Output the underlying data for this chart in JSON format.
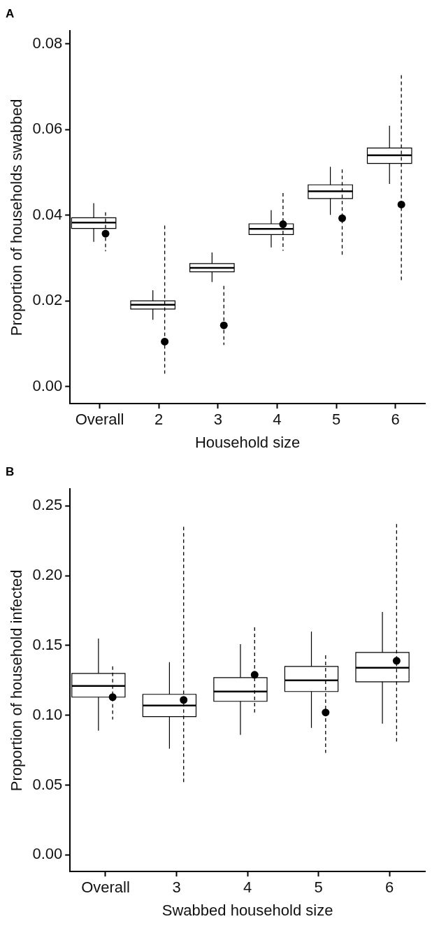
{
  "chart_data": [
    {
      "type": "box",
      "title": "A",
      "xlabel": "Household size",
      "ylabel": "Proportion of households swabbed",
      "categories": [
        "Overall",
        "2",
        "3",
        "4",
        "5",
        "6"
      ],
      "ylim": [
        -0.004,
        0.083
      ],
      "yticks": [
        {
          "value": 0,
          "label": "0.00"
        },
        0.02,
        0.04,
        0.06,
        0.08
      ],
      "series": [
        {
          "color": "#000000",
          "boxes": [
            {
              "low": 0.0338,
              "q1": 0.0369,
              "median": 0.0383,
              "q3": 0.0394,
              "high": 0.0428
            },
            {
              "low": 0.0156,
              "q1": 0.0181,
              "median": 0.0191,
              "q3": 0.02,
              "high": 0.0225
            },
            {
              "low": 0.0244,
              "q1": 0.0268,
              "median": 0.0277,
              "q3": 0.0287,
              "high": 0.0313
            },
            {
              "low": 0.0325,
              "q1": 0.0355,
              "median": 0.0368,
              "q3": 0.038,
              "high": 0.0412
            },
            {
              "low": 0.0401,
              "q1": 0.0439,
              "median": 0.0456,
              "q3": 0.0471,
              "high": 0.0513
            },
            {
              "low": 0.0473,
              "q1": 0.0521,
              "median": 0.054,
              "q3": 0.0557,
              "high": 0.0609
            }
          ]
        },
        {
          "type": "scatter",
          "color": "#000000",
          "marker": "circle",
          "line_style": "dashed",
          "x": [
            "Overall",
            "2",
            "3",
            "4",
            "5",
            "6"
          ],
          "values": [
            0.0357,
            0.0105,
            0.0143,
            0.0379,
            0.0393,
            0.0425
          ],
          "errors": [
            [
              0.0316,
              0.0407
            ],
            [
              0.003,
              0.0376
            ],
            [
              0.0097,
              0.0235
            ],
            [
              0.0317,
              0.0452
            ],
            [
              0.0304,
              0.0507
            ],
            [
              0.0248,
              0.0727
            ]
          ]
        }
      ]
    },
    {
      "type": "box",
      "title": "B",
      "xlabel": "Swabbed household size",
      "ylabel": "Proportion of household infected",
      "categories": [
        "Overall",
        "3",
        "4",
        "5",
        "6"
      ],
      "ylim": [
        -0.012,
        0.262
      ],
      "yticks": [
        {
          "value": 0,
          "label": "0.00"
        },
        0.05,
        {
          "value": 0.1,
          "label": "0.10"
        },
        0.15,
        {
          "value": 0.2,
          "label": "0.20"
        },
        0.25
      ],
      "series": [
        {
          "color": "#000000",
          "boxes": [
            {
              "low": 0.089,
              "q1": 0.113,
              "median": 0.121,
              "q3": 0.13,
              "high": 0.155
            },
            {
              "low": 0.076,
              "q1": 0.099,
              "median": 0.107,
              "q3": 0.115,
              "high": 0.138
            },
            {
              "low": 0.086,
              "q1": 0.11,
              "median": 0.117,
              "q3": 0.127,
              "high": 0.151
            },
            {
              "low": 0.091,
              "q1": 0.117,
              "median": 0.125,
              "q3": 0.135,
              "high": 0.16
            },
            {
              "low": 0.094,
              "q1": 0.124,
              "median": 0.134,
              "q3": 0.145,
              "high": 0.174
            }
          ]
        },
        {
          "type": "scatter",
          "color": "#000000",
          "marker": "circle",
          "line_style": "dashed",
          "x": [
            "Overall",
            "3",
            "4",
            "5",
            "6"
          ],
          "values": [
            0.113,
            0.111,
            0.129,
            0.102,
            0.139
          ],
          "errors": [
            [
              0.097,
              0.135
            ],
            [
              0.051,
              0.235
            ],
            [
              0.102,
              0.163
            ],
            [
              0.073,
              0.143
            ],
            [
              0.081,
              0.237
            ]
          ]
        }
      ]
    }
  ]
}
